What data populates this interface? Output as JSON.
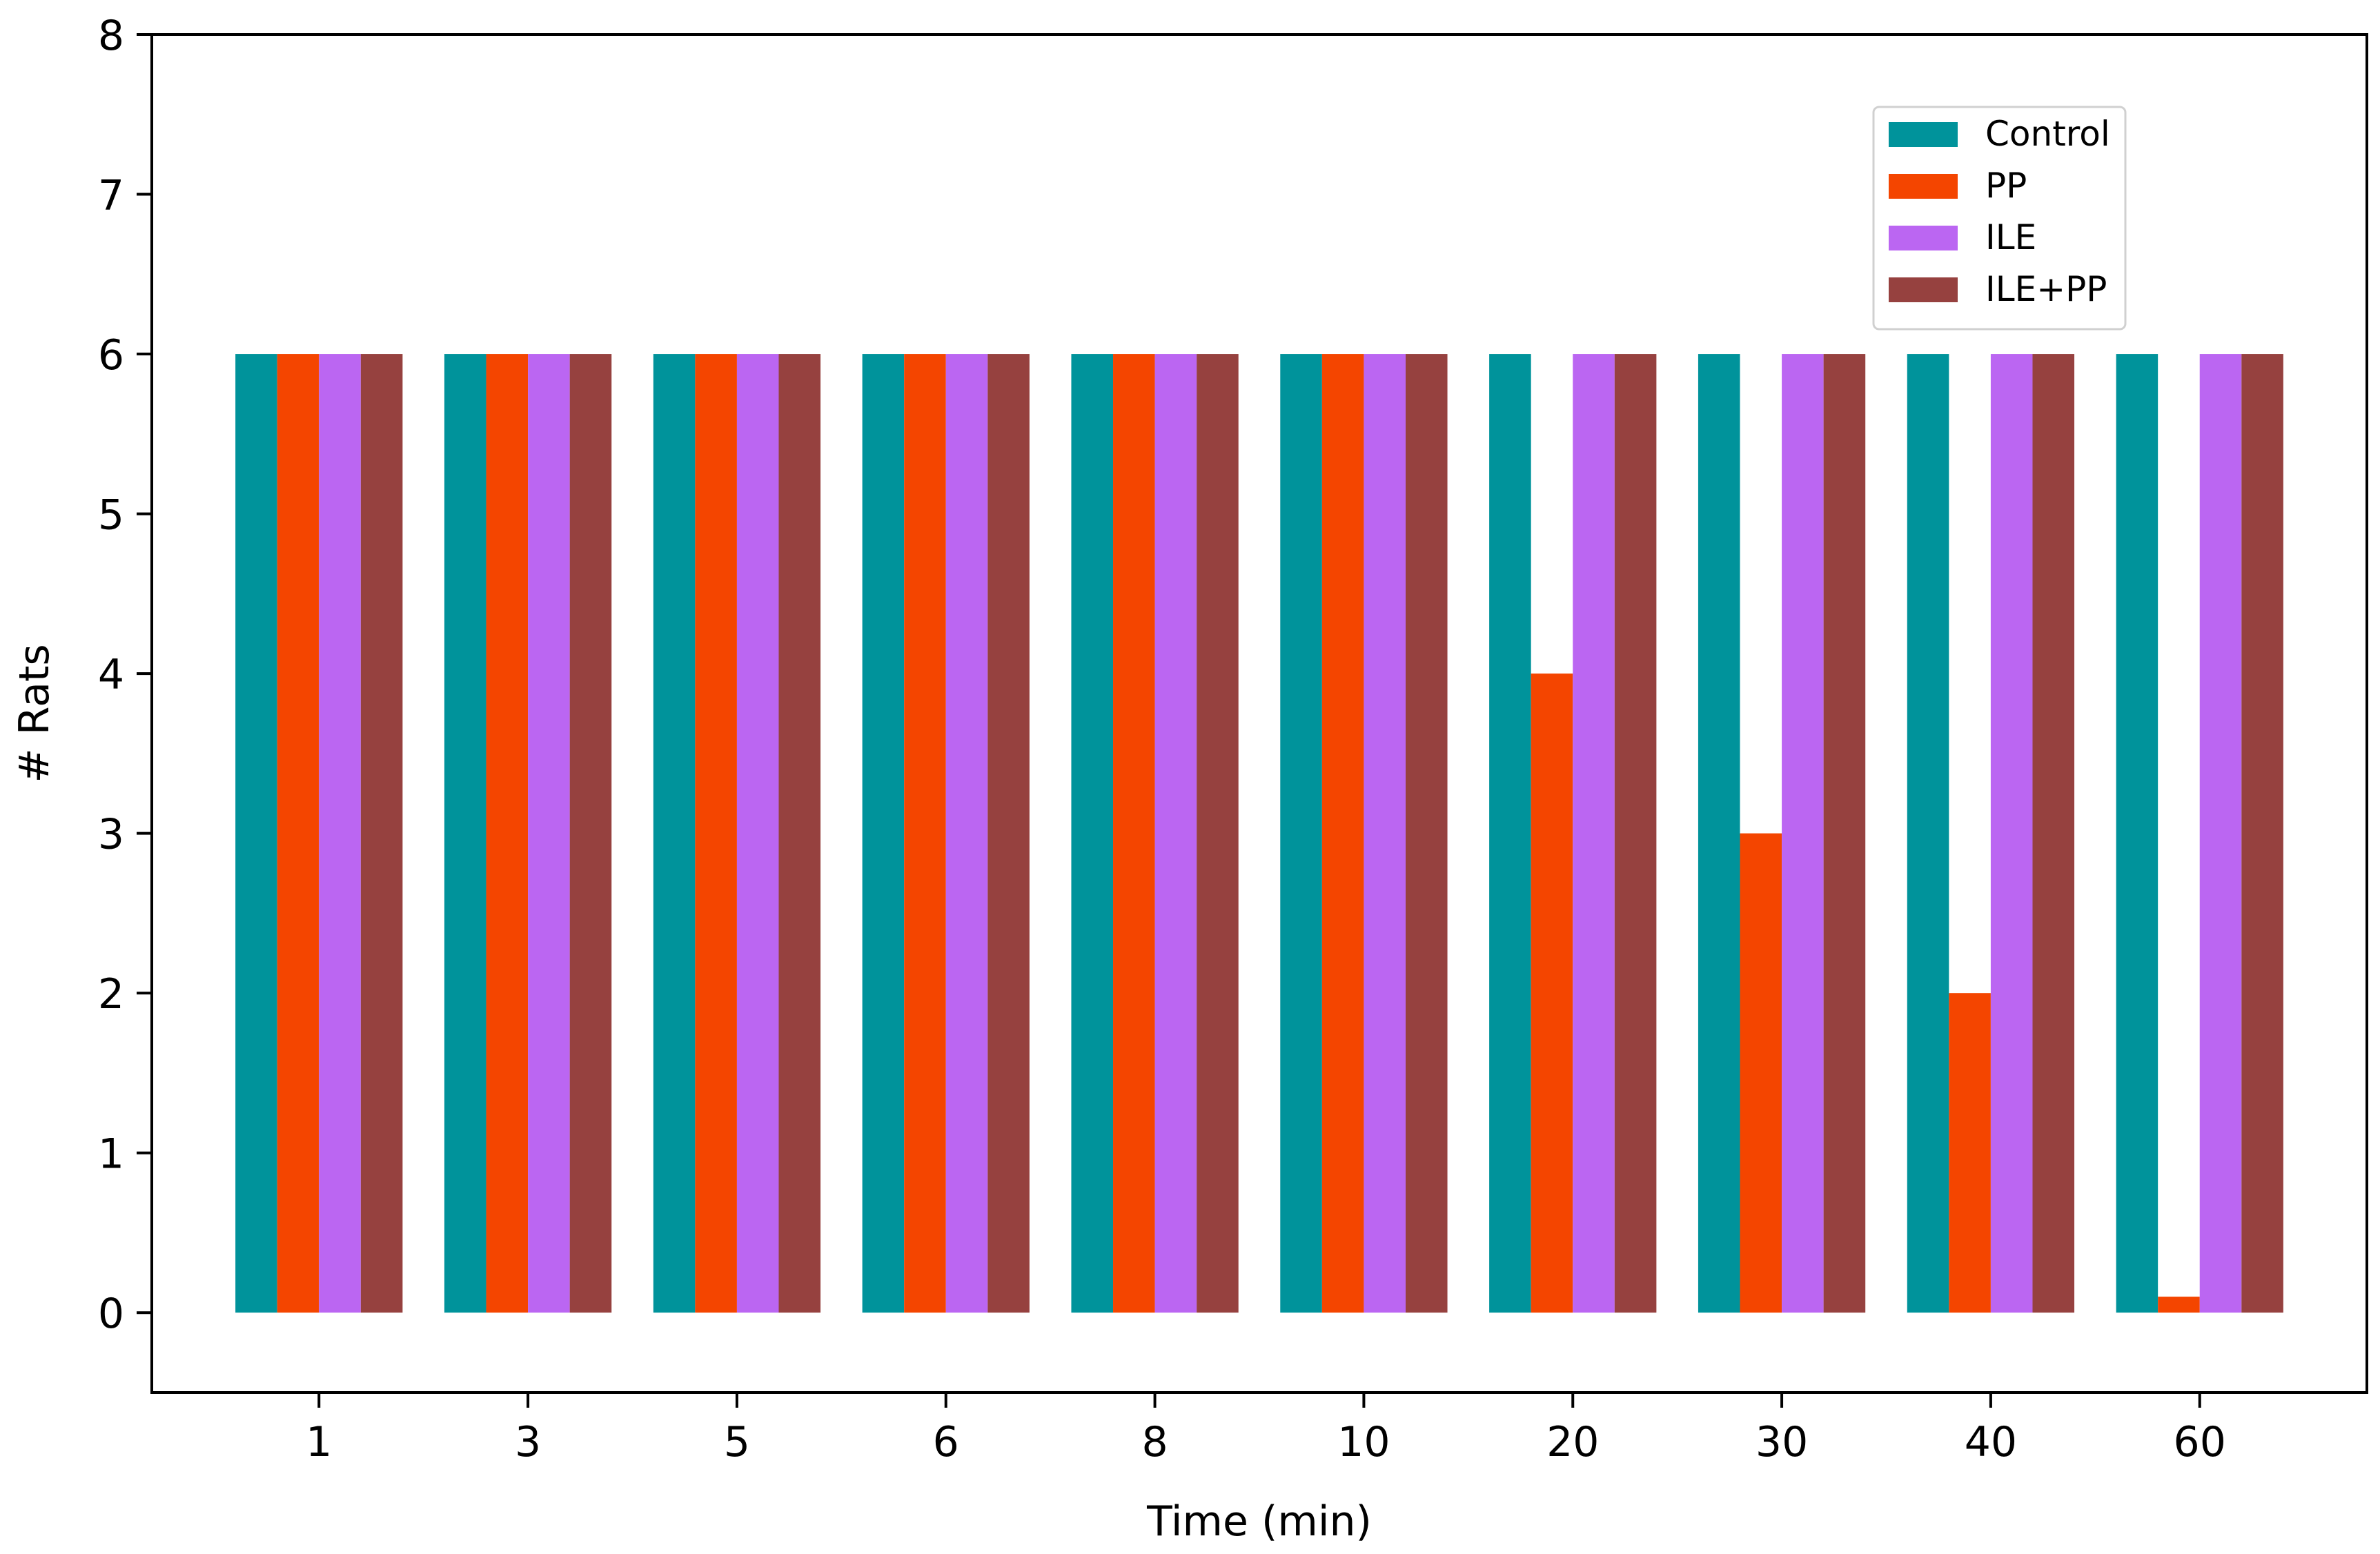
{
  "chart_data": {
    "type": "bar",
    "title": "",
    "xlabel": "Time (min)",
    "ylabel": "# Rats",
    "categories": [
      "1",
      "3",
      "5",
      "6",
      "8",
      "10",
      "20",
      "30",
      "40",
      "60"
    ],
    "series": [
      {
        "name": "Control",
        "color": "#00939b",
        "values": [
          6,
          6,
          6,
          6,
          6,
          6,
          6,
          6,
          6,
          6
        ]
      },
      {
        "name": "PP",
        "color": "#f44500",
        "values": [
          6,
          6,
          6,
          6,
          6,
          6,
          4,
          3,
          2,
          0.1
        ]
      },
      {
        "name": "ILE",
        "color": "#bb66f2",
        "values": [
          6,
          6,
          6,
          6,
          6,
          6,
          6,
          6,
          6,
          6
        ]
      },
      {
        "name": "ILE+PP",
        "color": "#96413f",
        "values": [
          6,
          6,
          6,
          6,
          6,
          6,
          6,
          6,
          6,
          6
        ]
      }
    ],
    "ylim": [
      -0.5,
      8
    ],
    "yticks": [
      0,
      1,
      2,
      3,
      4,
      5,
      6,
      7,
      8
    ],
    "grid": false,
    "legend_position": "top-right"
  }
}
